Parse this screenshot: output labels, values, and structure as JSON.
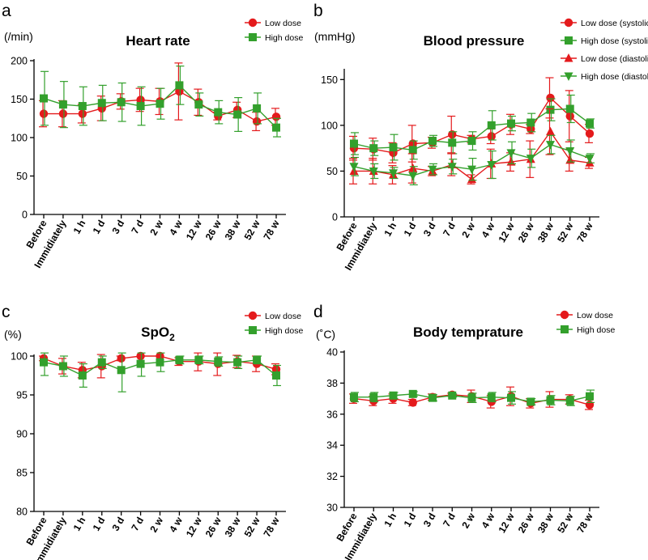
{
  "chart_data": [
    {
      "id": "a",
      "panel_letter": "a",
      "type": "line",
      "title": "Heart rate",
      "unit_label": "(/min)",
      "ylim": [
        0,
        200
      ],
      "yticks": [
        0,
        50,
        100,
        150,
        200
      ],
      "categories": [
        "Before",
        "Immidiately",
        "1 h",
        "1 d",
        "3 d",
        "7 d",
        "2 w",
        "4 w",
        "12 w",
        "26 w",
        "38 w",
        "52 w",
        "78 w"
      ],
      "series": [
        {
          "name": "Low dose",
          "color": "#e41a1c",
          "marker": "circle",
          "values": [
            131,
            131,
            131,
            138,
            147,
            149,
            147,
            160,
            146,
            128,
            136,
            121,
            127
          ],
          "errors": [
            17,
            17,
            12,
            16,
            10,
            15,
            17,
            37,
            17,
            5,
            10,
            12,
            11
          ]
        },
        {
          "name": "High dose",
          "color": "#33a02c",
          "marker": "square",
          "values": [
            151,
            143,
            141,
            145,
            146,
            141,
            144,
            168,
            143,
            133,
            130,
            138,
            113
          ],
          "errors": [
            35,
            30,
            25,
            23,
            25,
            25,
            20,
            25,
            15,
            15,
            22,
            20,
            12
          ]
        }
      ]
    },
    {
      "id": "b",
      "panel_letter": "b",
      "type": "line",
      "title": "Blood pressure",
      "unit_label": "(mmHg)",
      "ylim": [
        0,
        160
      ],
      "yticks": [
        0,
        50,
        100,
        150
      ],
      "categories": [
        "Before",
        "Immidiately",
        "1 h",
        "1 d",
        "3 d",
        "7 d",
        "2 w",
        "4 w",
        "12 w",
        "26 w",
        "38 w",
        "52 w",
        "78 w"
      ],
      "series": [
        {
          "name": "Low dose (systolic)",
          "color": "#e41a1c",
          "marker": "circle",
          "values": [
            75,
            74,
            70,
            80,
            81,
            90,
            85,
            88,
            101,
            96,
            130,
            110,
            91
          ],
          "errors": [
            13,
            12,
            11,
            20,
            6,
            20,
            4,
            8,
            11,
            5,
            22,
            28,
            10
          ]
        },
        {
          "name": "High dose (systolic)",
          "color": "#33a02c",
          "marker": "square",
          "values": [
            80,
            75,
            76,
            73,
            83,
            81,
            83,
            100,
            102,
            103,
            117,
            118,
            102
          ],
          "errors": [
            12,
            8,
            14,
            10,
            6,
            12,
            10,
            16,
            8,
            10,
            12,
            15,
            5
          ]
        },
        {
          "name": "Low dose (diastolic)",
          "color": "#e41a1c",
          "marker": "triangle",
          "values": [
            50,
            50,
            46,
            53,
            50,
            57,
            41,
            58,
            60,
            63,
            93,
            62,
            59
          ],
          "errors": [
            14,
            14,
            10,
            16,
            5,
            12,
            5,
            16,
            10,
            20,
            25,
            12,
            6
          ]
        },
        {
          "name": "High dose (diastolic)",
          "color": "#33a02c",
          "marker": "triangle-down",
          "values": [
            55,
            50,
            48,
            45,
            52,
            55,
            52,
            57,
            70,
            64,
            79,
            72,
            64
          ],
          "errors": [
            10,
            8,
            6,
            10,
            6,
            8,
            12,
            15,
            12,
            10,
            10,
            12,
            5
          ]
        }
      ]
    },
    {
      "id": "c",
      "panel_letter": "c",
      "type": "line",
      "title": "SpO",
      "title_subscript": "2",
      "unit_label": "(%)",
      "ylim": [
        80,
        100
      ],
      "yticks": [
        80,
        85,
        90,
        95,
        100
      ],
      "categories": [
        "Before",
        "Immidiately",
        "1 h",
        "1 d",
        "3 d",
        "7 d",
        "2 w",
        "4 w",
        "12 w",
        "26 w",
        "38 w",
        "52 w",
        "78 w"
      ],
      "series": [
        {
          "name": "Low dose",
          "color": "#e41a1c",
          "marker": "circle",
          "values": [
            99.7,
            98.7,
            98.2,
            98.7,
            99.7,
            100,
            100,
            99.3,
            99.3,
            99.0,
            99.3,
            99.0,
            98.3
          ],
          "errors": [
            0.3,
            1.0,
            1.0,
            1.5,
            0.3,
            0,
            0,
            0.5,
            1.2,
            1.5,
            0.8,
            1.0,
            0.7
          ]
        },
        {
          "name": "High dose",
          "color": "#33a02c",
          "marker": "square",
          "values": [
            99.2,
            98.7,
            97.5,
            99.2,
            98.2,
            99.0,
            99.2,
            99.5,
            99.5,
            99.3,
            99.2,
            99.5,
            97.5
          ],
          "errors": [
            1.7,
            1.3,
            1.5,
            0.8,
            2.8,
            1.6,
            1.2,
            0.5,
            0.5,
            0.6,
            0.8,
            0.5,
            1.3
          ]
        }
      ]
    },
    {
      "id": "d",
      "panel_letter": "d",
      "type": "line",
      "title": "Body temprature",
      "unit_label": "(˚C)",
      "ylim": [
        30,
        40
      ],
      "yticks": [
        30,
        32,
        34,
        36,
        38,
        40
      ],
      "categories": [
        "Before",
        "Immidiately",
        "1 h",
        "1 d",
        "3 d",
        "7 d",
        "2 w",
        "4 w",
        "12 w",
        "26 w",
        "38 w",
        "52 w",
        "78 w"
      ],
      "series": [
        {
          "name": "Low dose",
          "color": "#e41a1c",
          "marker": "circle",
          "values": [
            37.0,
            36.85,
            37.0,
            36.75,
            37.1,
            37.25,
            37.15,
            36.8,
            37.15,
            36.7,
            36.95,
            36.95,
            36.6
          ],
          "errors": [
            0.3,
            0.3,
            0.3,
            0.2,
            0.2,
            0.1,
            0.4,
            0.4,
            0.6,
            0.3,
            0.5,
            0.3,
            0.3
          ]
        },
        {
          "name": "High dose",
          "color": "#33a02c",
          "marker": "square",
          "values": [
            37.1,
            37.1,
            37.2,
            37.3,
            37.05,
            37.2,
            37.05,
            37.1,
            37.05,
            36.8,
            36.9,
            36.85,
            37.15
          ],
          "errors": [
            0.3,
            0.3,
            0.2,
            0.15,
            0.2,
            0.1,
            0.3,
            0.3,
            0.4,
            0.2,
            0.3,
            0.3,
            0.4
          ]
        }
      ]
    }
  ]
}
